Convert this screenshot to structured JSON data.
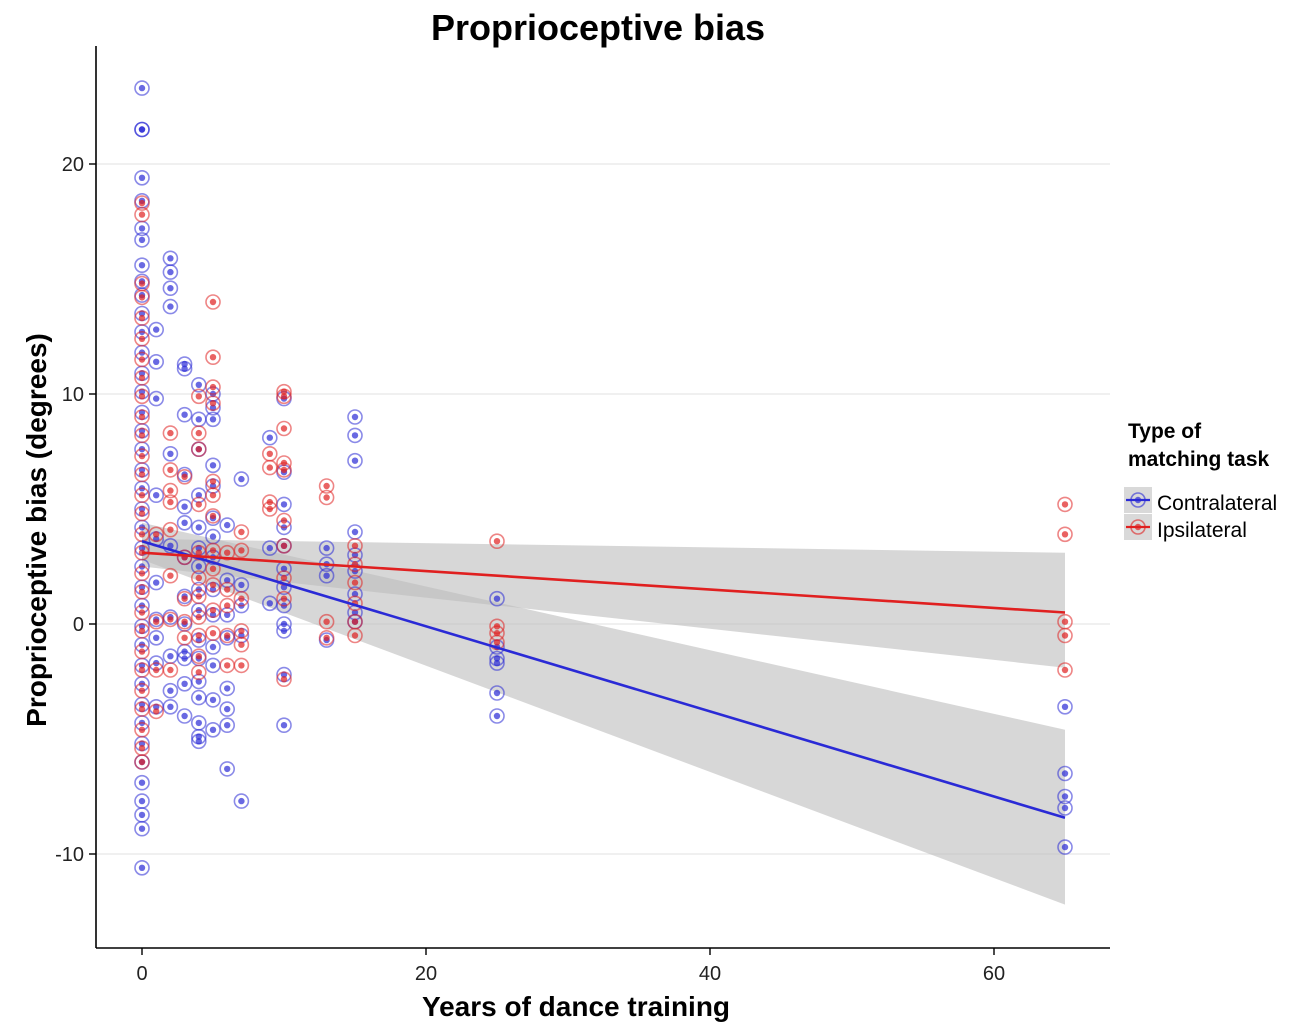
{
  "chart_data": {
    "type": "scatter",
    "title": "Proprioceptive bias",
    "xlabel": "Years of dance training",
    "ylabel": "Proprioceptive bias (degrees)",
    "xlim": [
      -4,
      68
    ],
    "ylim": [
      -14,
      25
    ],
    "xticks": [
      0,
      20,
      40,
      60
    ],
    "yticks": [
      -10,
      0,
      10,
      20
    ],
    "xtick_labels": [
      "0",
      "20",
      "40",
      "60"
    ],
    "ytick_labels": [
      "-10",
      "0",
      "10",
      "20"
    ],
    "grid": "horizontal major",
    "legend": {
      "title_line1": "Type of",
      "title_line2": "matching task",
      "placement": "right",
      "entries": [
        "Contralateral",
        "Ipsilateral"
      ]
    },
    "series": [
      {
        "name": "Contralateral",
        "color": "#2a2ad6",
        "fit": {
          "intercept": 3.6,
          "slope": -0.185,
          "x_range": [
            0,
            65
          ],
          "ci_end_lower": -12.2,
          "ci_end_upper": -4.6,
          "ci_start_halfwidth": 0.8
        },
        "points": [
          {
            "x": 0,
            "y": [
              23.3,
              21.5,
              21.5,
              19.4,
              18.4,
              17.2,
              16.7,
              15.6,
              14.9,
              14.3,
              13.5,
              12.7,
              11.8,
              10.9,
              10.1,
              9.2,
              8.4,
              7.6,
              6.7,
              5.9,
              5.0,
              4.2,
              3.3,
              2.5,
              1.6,
              0.8,
              -0.1,
              -0.9,
              -1.8,
              -2.6,
              -3.5,
              -4.3,
              -5.2,
              -6.0,
              -6.9,
              -7.7,
              -8.3,
              -8.9,
              -10.6
            ]
          },
          {
            "x": 1,
            "y": [
              12.8,
              11.4,
              9.8,
              5.6,
              3.7,
              1.8,
              0.2,
              -0.6,
              -1.7,
              -3.6
            ]
          },
          {
            "x": 2,
            "y": [
              15.9,
              15.3,
              14.6,
              13.8,
              7.4,
              3.4,
              0.3,
              -1.4,
              -2.9,
              -3.6
            ]
          },
          {
            "x": 3,
            "y": [
              11.3,
              11.1,
              9.1,
              6.5,
              5.1,
              4.4,
              2.9,
              1.2,
              0.0,
              -1.2,
              -1.5,
              -2.6,
              -4.0
            ]
          },
          {
            "x": 4,
            "y": [
              10.4,
              8.9,
              7.6,
              5.6,
              4.2,
              3.3,
              2.5,
              1.5,
              0.6,
              -0.7,
              -1.5,
              -2.5,
              -3.2,
              -4.3,
              -4.9,
              -5.1
            ]
          },
          {
            "x": 5,
            "y": [
              10.0,
              9.4,
              8.9,
              6.9,
              6.0,
              4.6,
              3.8,
              2.9,
              1.5,
              0.4,
              -1.0,
              -1.8,
              -3.3,
              -4.6
            ]
          },
          {
            "x": 6,
            "y": [
              4.3,
              1.9,
              0.4,
              -0.6,
              -2.8,
              -3.7,
              -4.4,
              -6.3
            ]
          },
          {
            "x": 7,
            "y": [
              6.3,
              1.7,
              0.8,
              -0.5,
              -7.7
            ]
          },
          {
            "x": 9,
            "y": [
              8.1,
              3.3,
              0.9
            ]
          },
          {
            "x": 10,
            "y": [
              9.8,
              6.6,
              5.2,
              4.2,
              3.4,
              2.4,
              1.6,
              0.8,
              0.0,
              -0.3,
              -2.2,
              -4.4
            ]
          },
          {
            "x": 13,
            "y": [
              3.3,
              2.6,
              2.1,
              -0.7
            ]
          },
          {
            "x": 15,
            "y": [
              9.0,
              8.2,
              7.1,
              4.0,
              3.0,
              2.3,
              1.3,
              0.5,
              0.1
            ]
          },
          {
            "x": 25,
            "y": [
              1.1,
              -1.0,
              -1.5,
              -1.7,
              -3.0,
              -4.0
            ]
          },
          {
            "x": 65,
            "y": [
              -3.6,
              -6.5,
              -7.5,
              -8.0,
              -9.7
            ]
          }
        ]
      },
      {
        "name": "Ipsilateral",
        "color": "#e02020",
        "fit": {
          "intercept": 3.1,
          "slope": -0.04,
          "x_range": [
            0,
            65
          ],
          "ci_end_lower": -1.9,
          "ci_end_upper": 3.1,
          "ci_start_halfwidth": 0.6
        },
        "points": [
          {
            "x": 0,
            "y": [
              18.3,
              17.8,
              14.8,
              14.2,
              13.3,
              12.4,
              11.5,
              10.7,
              9.9,
              9.0,
              8.2,
              7.3,
              6.5,
              5.6,
              4.8,
              3.9,
              3.1,
              2.2,
              1.4,
              0.5,
              -0.3,
              -1.2,
              -2.0,
              -2.9,
              -3.7,
              -4.6,
              -5.4,
              -6.0
            ]
          },
          {
            "x": 1,
            "y": [
              3.9,
              0.1,
              -2.0,
              -3.8
            ]
          },
          {
            "x": 2,
            "y": [
              8.3,
              6.7,
              5.8,
              5.3,
              4.1,
              2.1,
              0.2,
              -2.0
            ]
          },
          {
            "x": 3,
            "y": [
              6.4,
              2.9,
              1.1,
              0.1,
              -0.6
            ]
          },
          {
            "x": 4,
            "y": [
              9.9,
              8.3,
              7.6,
              5.2,
              3.1,
              2.0,
              1.2,
              0.3,
              -0.5,
              -1.4,
              -2.1
            ]
          },
          {
            "x": 5,
            "y": [
              14.0,
              11.6,
              10.3,
              9.6,
              6.2,
              5.6,
              4.7,
              3.2,
              2.4,
              1.7,
              0.6,
              -0.4
            ]
          },
          {
            "x": 6,
            "y": [
              3.1,
              1.5,
              0.8,
              -0.5,
              -1.8
            ]
          },
          {
            "x": 7,
            "y": [
              4.0,
              3.2,
              1.1,
              -0.3,
              -0.9,
              -1.8
            ]
          },
          {
            "x": 9,
            "y": [
              7.4,
              6.8,
              5.3,
              5.0
            ]
          },
          {
            "x": 10,
            "y": [
              10.1,
              9.9,
              8.5,
              7.0,
              6.7,
              4.5,
              3.4,
              2.0,
              1.1,
              -2.4
            ]
          },
          {
            "x": 13,
            "y": [
              6.0,
              5.5,
              0.1,
              -0.6
            ]
          },
          {
            "x": 15,
            "y": [
              3.4,
              2.6,
              1.8,
              0.9,
              0.1,
              -0.5
            ]
          },
          {
            "x": 25,
            "y": [
              3.6,
              -0.1,
              -0.4,
              -0.8
            ]
          },
          {
            "x": 65,
            "y": [
              5.2,
              3.9,
              0.1,
              -0.5,
              -2.0
            ]
          }
        ]
      }
    ]
  },
  "colors": {
    "ci_band": "#bdbdbd",
    "grid": "#e6e6e6",
    "legend_key_bg": "#d9d9d9"
  }
}
